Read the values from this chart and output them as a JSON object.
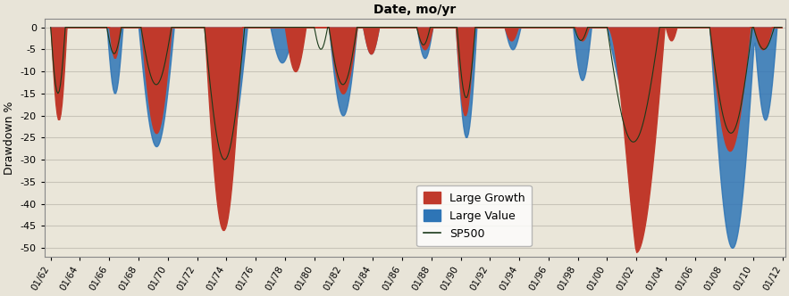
{
  "title": "Date, mo/yr",
  "ylabel": "Drawdown %",
  "bg_color": "#E8E4D8",
  "plot_bg_color": "#EAE6D9",
  "grid_color": "#C8C4B8",
  "lg_color": "#C0392B",
  "lv_color": "#2E75B6",
  "sp_color": "#1a3a1a",
  "ylim": [
    -52,
    2
  ],
  "yticks": [
    0,
    -5,
    -10,
    -15,
    -20,
    -25,
    -30,
    -35,
    -40,
    -45,
    -50
  ],
  "xtick_years": [
    "01/62",
    "01/64",
    "01/66",
    "01/68",
    "01/70",
    "01/72",
    "01/74",
    "01/76",
    "01/78",
    "01/80",
    "01/82",
    "01/84",
    "01/86",
    "01/88",
    "01/90",
    "01/92",
    "01/94",
    "01/96",
    "01/98",
    "01/00",
    "01/02",
    "01/04",
    "01/06",
    "01/08",
    "01/10",
    "01/12"
  ]
}
